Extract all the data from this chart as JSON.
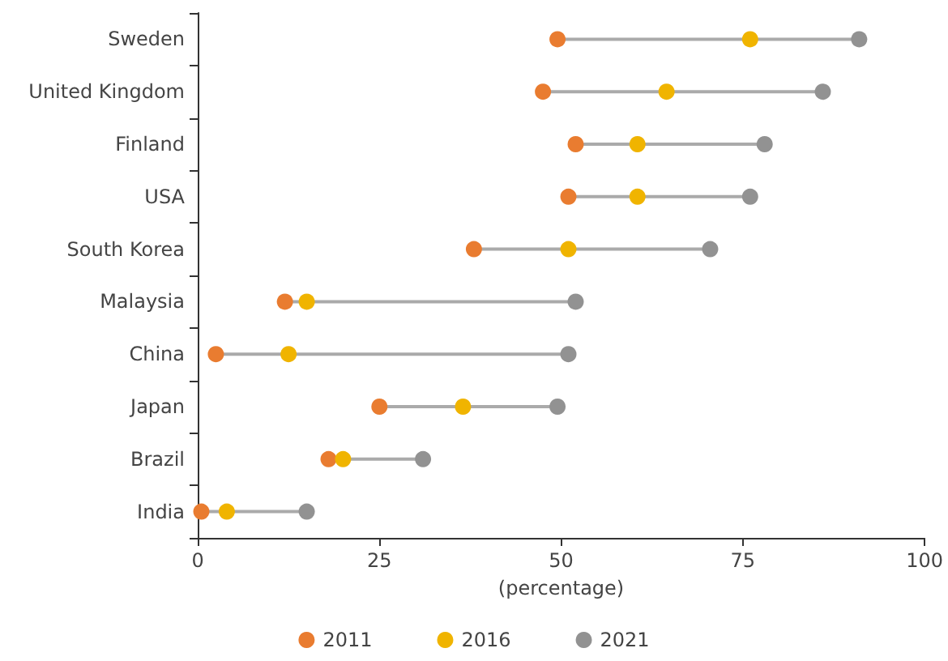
{
  "chart_data": {
    "type": "scatter",
    "orientation": "horizontal",
    "categories": [
      "Sweden",
      "United Kingdom",
      "Finland",
      "USA",
      "South Korea",
      "Malaysia",
      "China",
      "Japan",
      "Brazil",
      "India"
    ],
    "series": [
      {
        "name": "2011",
        "color": "#e97c30",
        "values": [
          49.5,
          47.5,
          52,
          51,
          38,
          12,
          2.5,
          25,
          18,
          0.5
        ]
      },
      {
        "name": "2016",
        "color": "#f0b400",
        "values": [
          76,
          64.5,
          60.5,
          60.5,
          51,
          15,
          12.5,
          36.5,
          20,
          4
        ]
      },
      {
        "name": "2021",
        "color": "#929292",
        "values": [
          91,
          86,
          78,
          76,
          70.5,
          52,
          51,
          49.5,
          31,
          15
        ]
      }
    ],
    "xlim": [
      0,
      100
    ],
    "xticks": [
      0,
      25,
      50,
      75,
      100
    ],
    "xlabel": "(percentage)",
    "grid": false,
    "legend": "bottom",
    "marker": "circle"
  }
}
